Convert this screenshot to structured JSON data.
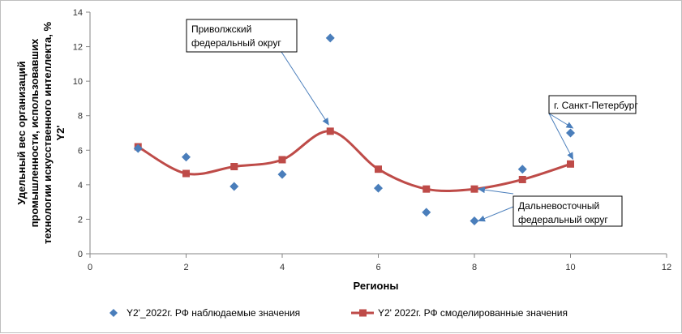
{
  "chart_data": {
    "type": "scatter",
    "title": "",
    "xlabel": "Регионы",
    "ylabel_lines": [
      "Удельный вес организаций",
      "промышленности, использовавших",
      "технологии искусственного интеллекта, %",
      "Y2'"
    ],
    "xlim": [
      0,
      12
    ],
    "ylim": [
      0,
      14
    ],
    "x_ticks": [
      0,
      2,
      4,
      6,
      8,
      10,
      12
    ],
    "y_ticks": [
      0,
      2,
      4,
      6,
      8,
      10,
      12,
      14
    ],
    "grid": false,
    "legend_position": "bottom",
    "series": [
      {
        "name": "Y2'_2022г. РФ наблюдаемые значения",
        "marker": "diamond",
        "color": "#4a7ebb",
        "x": [
          1,
          2,
          3,
          4,
          5,
          6,
          7,
          8,
          9,
          10
        ],
        "values": [
          6.1,
          5.6,
          3.9,
          4.6,
          12.5,
          3.8,
          2.4,
          1.9,
          4.9,
          7.0
        ]
      },
      {
        "name": "Y2' 2022г. РФ смоделированные значения",
        "marker": "square",
        "line": "smooth",
        "color": "#be4b48",
        "x": [
          1,
          2,
          3,
          4,
          5,
          6,
          7,
          8,
          9,
          10
        ],
        "values": [
          6.2,
          4.65,
          5.05,
          5.45,
          7.1,
          4.9,
          3.75,
          3.75,
          4.3,
          5.2
        ]
      }
    ],
    "annotations": [
      {
        "lines": [
          "Приволжский",
          "федеральный округ"
        ],
        "targets": [
          [
            5,
            7.1
          ]
        ]
      },
      {
        "lines": [
          "г. Санкт-Петербург"
        ],
        "targets": [
          [
            10,
            7.0
          ],
          [
            10,
            5.2
          ]
        ]
      },
      {
        "lines": [
          "Дальневосточный",
          "федеральный округ"
        ],
        "targets": [
          [
            8,
            3.75
          ],
          [
            8,
            1.9
          ]
        ]
      }
    ]
  }
}
